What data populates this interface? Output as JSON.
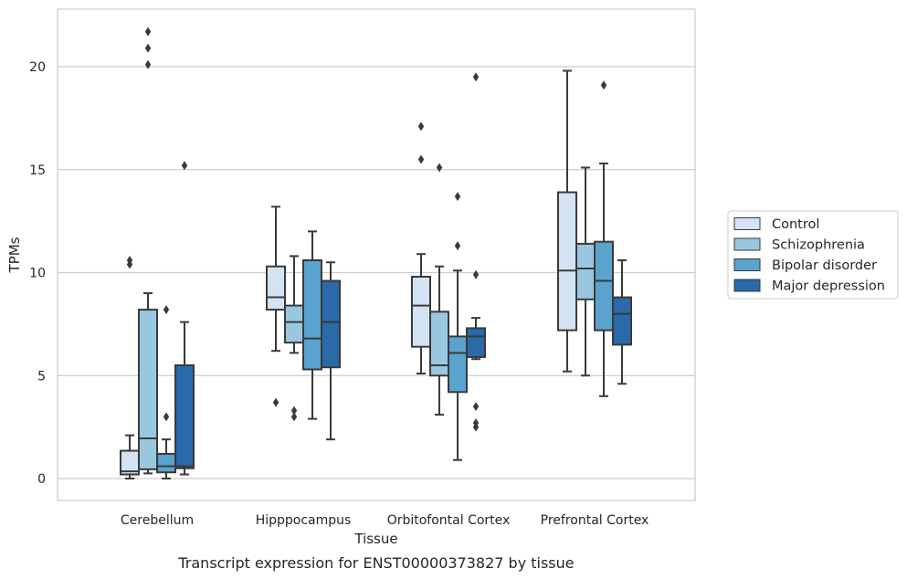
{
  "caption": "Transcript expression for ENST00000373827 by tissue",
  "chart_data": {
    "type": "boxplot",
    "xlabel": "Tissue",
    "ylabel": "TPMs",
    "ylim": [
      -1,
      23
    ],
    "yticks": [
      0,
      5,
      10,
      15,
      20
    ],
    "grid": "horizontal",
    "legend_position": "right",
    "categories": [
      "Cerebellum",
      "Hipppocampus",
      "Orbitofontal Cortex",
      "Prefrontal Cortex"
    ],
    "series": [
      {
        "name": "Control",
        "color": "#d3e3f3",
        "boxes": [
          {
            "whislo": 0.0,
            "q1": 0.2,
            "med": 0.35,
            "q3": 1.35,
            "whishi": 2.1,
            "fliers": [
              10.4,
              10.6
            ]
          },
          {
            "whislo": 6.2,
            "q1": 8.2,
            "med": 8.8,
            "q3": 10.3,
            "whishi": 13.2,
            "fliers": [
              3.7
            ]
          },
          {
            "whislo": 5.1,
            "q1": 6.4,
            "med": 8.4,
            "q3": 9.8,
            "whishi": 10.9,
            "fliers": [
              15.5,
              17.1
            ]
          },
          {
            "whislo": 5.2,
            "q1": 7.2,
            "med": 10.1,
            "q3": 13.9,
            "whishi": 19.8,
            "fliers": []
          }
        ]
      },
      {
        "name": "Schizophrenia",
        "color": "#9ac7e0",
        "boxes": [
          {
            "whislo": 0.25,
            "q1": 0.45,
            "med": 1.95,
            "q3": 8.2,
            "whishi": 9.0,
            "fliers": [
              20.1,
              20.9,
              21.7
            ]
          },
          {
            "whislo": 6.1,
            "q1": 6.6,
            "med": 7.6,
            "q3": 8.4,
            "whishi": 10.8,
            "fliers": [
              3.3,
              3.0
            ]
          },
          {
            "whislo": 3.1,
            "q1": 5.0,
            "med": 5.5,
            "q3": 8.1,
            "whishi": 10.3,
            "fliers": [
              15.1
            ]
          },
          {
            "whislo": 5.0,
            "q1": 8.7,
            "med": 10.2,
            "q3": 11.4,
            "whishi": 15.1,
            "fliers": []
          }
        ]
      },
      {
        "name": "Bipolar disorder",
        "color": "#5ba3cf",
        "boxes": [
          {
            "whislo": 0.0,
            "q1": 0.3,
            "med": 0.6,
            "q3": 1.2,
            "whishi": 1.9,
            "fliers": [
              3.0,
              8.2
            ]
          },
          {
            "whislo": 2.9,
            "q1": 5.3,
            "med": 6.8,
            "q3": 10.6,
            "whishi": 12.0,
            "fliers": []
          },
          {
            "whislo": 0.9,
            "q1": 4.2,
            "med": 6.1,
            "q3": 6.9,
            "whishi": 10.1,
            "fliers": [
              11.3,
              13.7
            ]
          },
          {
            "whislo": 4.0,
            "q1": 7.2,
            "med": 9.6,
            "q3": 11.5,
            "whishi": 15.3,
            "fliers": [
              19.1
            ]
          }
        ]
      },
      {
        "name": "Major depression",
        "color": "#2a6aa8",
        "boxes": [
          {
            "whislo": 0.2,
            "q1": 0.5,
            "med": 0.6,
            "q3": 5.5,
            "whishi": 7.6,
            "fliers": [
              15.2
            ]
          },
          {
            "whislo": 1.9,
            "q1": 5.4,
            "med": 7.6,
            "q3": 9.6,
            "whishi": 10.5,
            "fliers": []
          },
          {
            "whislo": 5.8,
            "q1": 5.9,
            "med": 6.9,
            "q3": 7.3,
            "whishi": 7.8,
            "fliers": [
              9.9,
              3.5,
              2.7,
              2.5,
              19.5
            ]
          },
          {
            "whislo": 4.6,
            "q1": 6.5,
            "med": 8.0,
            "q3": 8.8,
            "whishi": 10.6,
            "fliers": []
          }
        ]
      }
    ]
  }
}
